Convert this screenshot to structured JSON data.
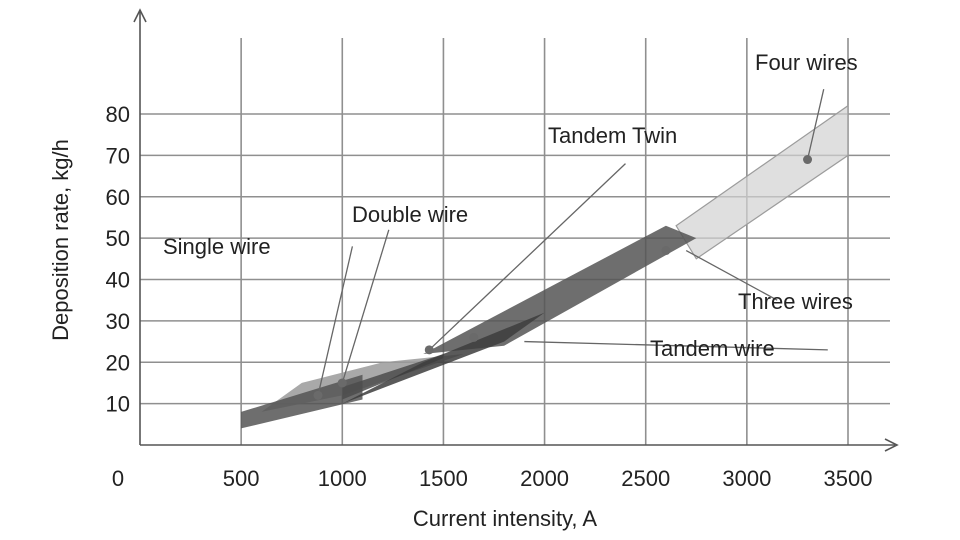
{
  "chart_data": {
    "type": "area",
    "title": "",
    "xlabel": "Current intensity, A",
    "ylabel": "Deposition rate, kg/h",
    "xlim": [
      0,
      3500
    ],
    "ylim": [
      0,
      80
    ],
    "x_ticks": [
      "0",
      "500",
      "1000",
      "1500",
      "2000",
      "2500",
      "3000",
      "3500"
    ],
    "y_ticks": [
      "10",
      "20",
      "30",
      "40",
      "50",
      "60",
      "70",
      "80"
    ],
    "x_tick_values": [
      0,
      500,
      1000,
      1500,
      2000,
      2500,
      3000,
      3500
    ],
    "y_tick_values": [
      10,
      20,
      30,
      40,
      50,
      60,
      70,
      80
    ],
    "grid": true,
    "series": [
      {
        "name": "Single wire",
        "color": "#555555",
        "band": [
          [
            500,
            4
          ],
          [
            500,
            8
          ],
          [
            1100,
            17
          ],
          [
            1100,
            11
          ]
        ],
        "marker": [
          880,
          12
        ],
        "label_anchor": [
          1050,
          57
        ],
        "label_align": "start"
      },
      {
        "name": "Double wire",
        "color": "#9a9a9a",
        "band": [
          [
            600,
            8
          ],
          [
            1000,
            12
          ],
          [
            1600,
            22
          ],
          [
            1200,
            20
          ],
          [
            800,
            15
          ]
        ],
        "marker": [
          1000,
          15
        ],
        "label_anchor": [
          1090,
          62
        ],
        "label_align": "start"
      },
      {
        "name": "Tandem Twin",
        "color": "#4c4c4c",
        "band": [
          [
            1000,
            11
          ],
          [
            1000,
            14
          ],
          [
            1500,
            22
          ],
          [
            1500,
            21
          ]
        ],
        "marker": [
          1430,
          23
        ],
        "label_anchor": [
          2450,
          76
        ],
        "label_align": "start"
      },
      {
        "name": "Tandem wire",
        "color": "#3d3d3d",
        "band": [
          [
            1000,
            10
          ],
          [
            1800,
            25
          ],
          [
            2000,
            32
          ],
          [
            1400,
            20
          ]
        ],
        "marker": [
          1650,
          26
        ],
        "label_anchor": [
          3450,
          23
        ],
        "label_align": "start"
      },
      {
        "name": "Three wires",
        "color": "#555555",
        "band": [
          [
            1400,
            22
          ],
          [
            2600,
            53
          ],
          [
            2750,
            50
          ],
          [
            1800,
            24
          ]
        ],
        "marker": [
          2600,
          47
        ],
        "label_anchor": [
          3950,
          35
        ],
        "label_align": "start"
      },
      {
        "name": "Four wires",
        "color": "#d2d2d2",
        "band": [
          [
            2650,
            53
          ],
          [
            3500,
            82
          ],
          [
            3500,
            70
          ],
          [
            2750,
            45
          ]
        ],
        "marker": [
          3300,
          69
        ],
        "label_anchor": [
          3680,
          94
        ],
        "label_align": "start"
      }
    ],
    "leaders": [
      {
        "series": "Single wire",
        "from": [
          1050,
          48
        ],
        "to": [
          880,
          12
        ]
      },
      {
        "series": "Double wire",
        "from": [
          1230,
          52
        ],
        "to": [
          1000,
          15
        ]
      },
      {
        "series": "Tandem Twin",
        "from": [
          2400,
          68
        ],
        "to": [
          1430,
          23
        ]
      },
      {
        "series": "Tandem wire",
        "from": [
          3400,
          23
        ],
        "to": [
          1900,
          25
        ]
      },
      {
        "series": "Three wires",
        "from": [
          3150,
          35
        ],
        "to": [
          2700,
          47
        ]
      },
      {
        "series": "Four wires",
        "from": [
          3380,
          86
        ],
        "to": [
          3300,
          69
        ]
      }
    ]
  }
}
